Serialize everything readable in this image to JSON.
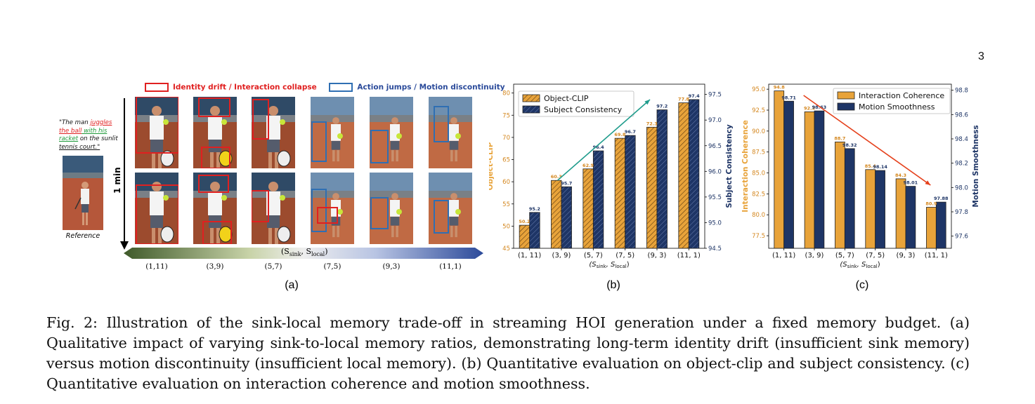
{
  "page_number": "3",
  "panel_a": {
    "legend_red": "Identity drift  / Interaction collapse",
    "legend_blue": "Action jumps / Motion discontinuity",
    "prompt": {
      "p1": "\"The man ",
      "p2": "juggles",
      "p3": "the ball",
      "p4": " with his",
      "p5": "racket",
      "p6": " on the sunlit ",
      "p7": "tennis court.\""
    },
    "reference_label": "Reference",
    "vertical_label": "1 min",
    "axis_label": "(S_sink, S_local)",
    "ticks": [
      "(1,11)",
      "(3,9)",
      "(5,7)",
      "(7,5)",
      "(9,3)",
      "(11,1)"
    ],
    "sublabel": "(a)"
  },
  "chart_data": [
    {
      "type": "bar",
      "categories": [
        "(1, 11)",
        "(3, 9)",
        "(5, 7)",
        "(7, 5)",
        "(9, 3)",
        "(11, 1)"
      ],
      "xlabel_main": "(S",
      "xlabel_sub1": "sink",
      "xlabel_mid": ", S",
      "xlabel_sub2": "local",
      "xlabel_end": ")",
      "series": [
        {
          "name": "Object-CLIP",
          "axis": "left",
          "values": [
            50.2,
            60.3,
            62.9,
            69.8,
            72.3,
            77.8
          ],
          "labels": [
            "50.2",
            "60.3",
            "62.9",
            "69.8",
            "72.3",
            "77.8"
          ],
          "color": "#e8a33a",
          "hatch": true
        },
        {
          "name": "Subject Consistency",
          "axis": "right",
          "values": [
            95.2,
            95.7,
            96.4,
            96.7,
            97.2,
            97.4
          ],
          "labels": [
            "95.2",
            "95.7",
            "96.4",
            "96.7",
            "97.2",
            "97.4"
          ],
          "color": "#1e3566",
          "hatch": true
        }
      ],
      "ylabel_left": "Object-CLIP",
      "ylabel_right": "Subject Consistency",
      "ylim_left": [
        45,
        82
      ],
      "yticks_left": [
        "45",
        "50",
        "55",
        "60",
        "65",
        "70",
        "75",
        "80"
      ],
      "ylim_right": [
        94.5,
        97.7
      ],
      "yticks_right": [
        "94.5",
        "95.0",
        "95.5",
        "96.0",
        "96.5",
        "97.0",
        "97.5"
      ],
      "trend_arrow": "up",
      "legend": "top-left",
      "sublabel": "(b)"
    },
    {
      "type": "bar",
      "categories": [
        "(1, 11)",
        "(3, 9)",
        "(5, 7)",
        "(7, 5)",
        "(9, 3)",
        "(11, 1)"
      ],
      "xlabel_main": "(S",
      "xlabel_sub1": "sink",
      "xlabel_mid": ", S",
      "xlabel_sub2": "local",
      "xlabel_end": ")",
      "series": [
        {
          "name": "Interaction Coherence",
          "axis": "left",
          "values": [
            94.8,
            92.3,
            88.7,
            85.4,
            84.3,
            80.9
          ],
          "labels": [
            "94.8",
            "92.3",
            "88.7",
            "85.4",
            "84.3",
            "80.9"
          ],
          "color": "#e8a33a",
          "hatch": false
        },
        {
          "name": "Motion Smoothness",
          "axis": "right",
          "values": [
            98.71,
            98.63,
            98.32,
            98.14,
            98.01,
            97.88
          ],
          "labels": [
            "98.71",
            "98.63",
            "98.32",
            "98.14",
            "98.01",
            "97.88"
          ],
          "color": "#1e3566",
          "hatch": false
        }
      ],
      "ylabel_left": "Interaction Coherence",
      "ylabel_right": "Motion Smoothness",
      "ylim_left": [
        76,
        95.6
      ],
      "yticks_left": [
        "77.5",
        "80.0",
        "82.5",
        "85.0",
        "87.5",
        "90.0",
        "92.5",
        "95.0"
      ],
      "ylim_right": [
        97.5,
        98.85
      ],
      "yticks_right": [
        "97.6",
        "97.8",
        "98.0",
        "98.2",
        "98.4",
        "98.6",
        "98.8"
      ],
      "trend_arrow": "down",
      "legend": "top-right",
      "sublabel": "(c)"
    }
  ],
  "caption": "Fig. 2: Illustration of the sink-local memory trade-off in streaming HOI generation under a fixed memory budget. (a) Qualitative impact of varying sink-to-local memory ratios, demonstrating long-term identity drift (insufficient sink memory) versus motion discontinuity (insufficient local memory). (b) Quantitative evaluation on object-clip and subject consistency. (c) Quantitative evaluation on interaction coherence and motion smoothness.",
  "colors": {
    "orange": "#e8a33a",
    "navy": "#1e3566",
    "teal_arrow": "#1f9c8c",
    "red_arrow": "#e5411c",
    "red_box": "#e02020",
    "blue_box": "#2f6fb3"
  }
}
